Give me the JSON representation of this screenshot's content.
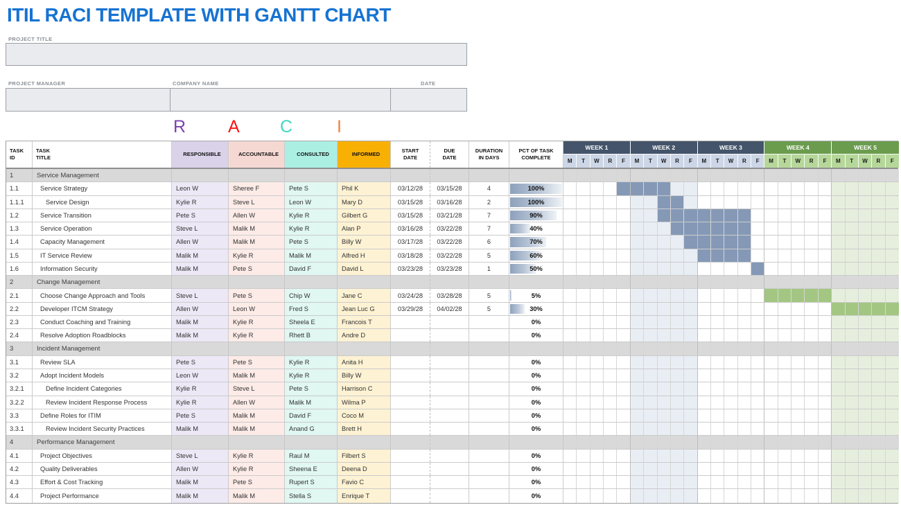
{
  "header": {
    "title": "ITIL RACI TEMPLATE WITH GANTT CHART",
    "title_color": "#1673d2"
  },
  "form": {
    "project_title_label": "PROJECT TITLE",
    "project_title_value": "",
    "project_manager_label": "PROJECT MANAGER",
    "project_manager_value": "",
    "company_name_label": "COMPANY NAME",
    "company_name_value": "",
    "date_label": "DATE",
    "date_value": ""
  },
  "raci_legend": [
    {
      "char": "R",
      "color": "#7d42ad"
    },
    {
      "char": "A",
      "color": "#fa1414"
    },
    {
      "char": "C",
      "color": "#43d6c5"
    },
    {
      "char": "I",
      "color": "#f08142"
    }
  ],
  "table": {
    "columns": [
      {
        "key": "id",
        "lines": [
          "TASK",
          "ID"
        ],
        "align": "left",
        "bg": "#ffffff"
      },
      {
        "key": "title",
        "lines": [
          "TASK",
          "TITLE"
        ],
        "align": "left",
        "bg": "#ffffff"
      },
      {
        "key": "resp",
        "lines": [
          "RESPONSIBLE"
        ],
        "align": "center",
        "bg": "#d9d2e9"
      },
      {
        "key": "acct",
        "lines": [
          "ACCOUNTABLE"
        ],
        "align": "center",
        "bg": "#f6d8d3"
      },
      {
        "key": "cons",
        "lines": [
          "CONSULTED"
        ],
        "align": "center",
        "bg": "#abefe3"
      },
      {
        "key": "inf",
        "lines": [
          "INFORMED"
        ],
        "align": "center",
        "bg": "#f9b005"
      },
      {
        "key": "start",
        "lines": [
          "START",
          "DATE"
        ],
        "align": "center",
        "bg": "#ffffff"
      },
      {
        "key": "due",
        "lines": [
          "DUE",
          "DATE"
        ],
        "align": "center",
        "bg": "#ffffff"
      },
      {
        "key": "dur",
        "lines": [
          "DURATION",
          "IN DAYS"
        ],
        "align": "center",
        "bg": "#ffffff"
      },
      {
        "key": "pct",
        "lines": [
          "PCT OF TASK",
          "COMPLETE"
        ],
        "align": "center",
        "bg": "#ffffff"
      }
    ],
    "gantt": {
      "weeks": [
        {
          "label": "WEEK 1",
          "theme": "blue"
        },
        {
          "label": "WEEK 2",
          "theme": "blue"
        },
        {
          "label": "WEEK 3",
          "theme": "blue"
        },
        {
          "label": "WEEK 4",
          "theme": "green"
        },
        {
          "label": "WEEK 5",
          "theme": "green"
        }
      ],
      "days": [
        "M",
        "T",
        "W",
        "R",
        "F"
      ],
      "band_blue_cols": [
        5,
        9
      ],
      "band_green_cols": [
        20,
        24
      ]
    },
    "colors": {
      "week_blue": "#44546a",
      "week_green": "#6b9c4e",
      "day_blue": "#ccd6e6",
      "day_green": "#b6d79a",
      "band_blue": "#e9eef5",
      "band_green": "#e6efdd",
      "bar_blue": "#8599b7",
      "bar_green": "#a3c782",
      "section_gray": "#d9d9d9"
    },
    "rows": [
      {
        "id": "1",
        "title": "Service Management",
        "level": 0,
        "section": true,
        "resp": "",
        "acct": "",
        "cons": "",
        "inf": "",
        "start": "",
        "due": "",
        "dur": "",
        "pct": "",
        "bar": null
      },
      {
        "id": "1.1",
        "title": "Service Strategy",
        "level": 1,
        "section": false,
        "resp": "Leon W",
        "acct": "Sheree F",
        "cons": "Pete S",
        "inf": "Phil K",
        "start": "03/12/28",
        "due": "03/15/28",
        "dur": "4",
        "pct": "100%",
        "bar": {
          "from": 4,
          "to": 7,
          "color": "blue"
        }
      },
      {
        "id": "1.1.1",
        "title": "Service Design",
        "level": 2,
        "section": false,
        "resp": "Kylie R",
        "acct": "Steve L",
        "cons": "Leon W",
        "inf": "Mary D",
        "start": "03/15/28",
        "due": "03/16/28",
        "dur": "2",
        "pct": "100%",
        "bar": {
          "from": 7,
          "to": 8,
          "color": "blue"
        }
      },
      {
        "id": "1.2",
        "title": "Service Transition",
        "level": 1,
        "section": false,
        "resp": "Pete S",
        "acct": "Allen W",
        "cons": "Kylie R",
        "inf": "Gilbert G",
        "start": "03/15/28",
        "due": "03/21/28",
        "dur": "7",
        "pct": "90%",
        "bar": {
          "from": 7,
          "to": 13,
          "color": "blue"
        }
      },
      {
        "id": "1.3",
        "title": "Service Operation",
        "level": 1,
        "section": false,
        "resp": "Steve L",
        "acct": "Malik M",
        "cons": "Kylie R",
        "inf": "Alan P",
        "start": "03/16/28",
        "due": "03/22/28",
        "dur": "7",
        "pct": "40%",
        "bar": {
          "from": 8,
          "to": 13,
          "color": "blue"
        }
      },
      {
        "id": "1.4",
        "title": "Capacity Management",
        "level": 1,
        "section": false,
        "resp": "Allen W",
        "acct": "Malik M",
        "cons": "Pete S",
        "inf": "Billy W",
        "start": "03/17/28",
        "due": "03/22/28",
        "dur": "6",
        "pct": "70%",
        "bar": {
          "from": 9,
          "to": 13,
          "color": "blue"
        }
      },
      {
        "id": "1.5",
        "title": "IT Service Review",
        "level": 1,
        "section": false,
        "resp": "Malik M",
        "acct": "Kylie R",
        "cons": "Malik M",
        "inf": "Alfred H",
        "start": "03/18/28",
        "due": "03/22/28",
        "dur": "5",
        "pct": "60%",
        "bar": {
          "from": 10,
          "to": 13,
          "color": "blue"
        }
      },
      {
        "id": "1.6",
        "title": "Information Security",
        "level": 1,
        "section": false,
        "resp": "Malik M",
        "acct": "Pete S",
        "cons": "David F",
        "inf": "David L",
        "start": "03/23/28",
        "due": "03/23/28",
        "dur": "1",
        "pct": "50%",
        "bar": {
          "from": 14,
          "to": 14,
          "color": "blue"
        }
      },
      {
        "id": "2",
        "title": "Change Management",
        "level": 0,
        "section": true,
        "resp": "",
        "acct": "",
        "cons": "",
        "inf": "",
        "start": "",
        "due": "",
        "dur": "",
        "pct": "",
        "bar": null
      },
      {
        "id": "2.1",
        "title": "Choose Change Approach and Tools",
        "level": 1,
        "section": false,
        "resp": "Steve L",
        "acct": "Pete S",
        "cons": "Chip W",
        "inf": "Jane C",
        "start": "03/24/28",
        "due": "03/28/28",
        "dur": "5",
        "pct": "5%",
        "bar": {
          "from": 15,
          "to": 19,
          "color": "green"
        }
      },
      {
        "id": "2.2",
        "title": "Developer ITCM Strategy",
        "level": 1,
        "section": false,
        "resp": "Allen W",
        "acct": "Leon W",
        "cons": "Fred S",
        "inf": "Jean Luc G",
        "start": "03/29/28",
        "due": "04/02/28",
        "dur": "5",
        "pct": "30%",
        "bar": {
          "from": 20,
          "to": 24,
          "color": "green"
        }
      },
      {
        "id": "2.3",
        "title": "Conduct Coaching and Training",
        "level": 1,
        "section": false,
        "resp": "Malik M",
        "acct": "Kylie R",
        "cons": "Sheela E",
        "inf": "Francois T",
        "start": "",
        "due": "",
        "dur": "",
        "pct": "0%",
        "bar": null
      },
      {
        "id": "2.4",
        "title": "Resolve Adoption Roadblocks",
        "level": 1,
        "section": false,
        "resp": "Malik M",
        "acct": "Kylie R",
        "cons": "Rhett B",
        "inf": "Andre D",
        "start": "",
        "due": "",
        "dur": "",
        "pct": "0%",
        "bar": null
      },
      {
        "id": "3",
        "title": "Incident Management",
        "level": 0,
        "section": true,
        "resp": "",
        "acct": "",
        "cons": "",
        "inf": "",
        "start": "",
        "due": "",
        "dur": "",
        "pct": "",
        "bar": null
      },
      {
        "id": "3.1",
        "title": "Review SLA",
        "level": 1,
        "section": false,
        "resp": "Pete S",
        "acct": "Pete S",
        "cons": "Kylie R",
        "inf": "Anita H",
        "start": "",
        "due": "",
        "dur": "",
        "pct": "0%",
        "bar": null
      },
      {
        "id": "3.2",
        "title": "Adopt Incident Models",
        "level": 1,
        "section": false,
        "resp": "Leon W",
        "acct": "Malik M",
        "cons": "Kylie R",
        "inf": "Billy W",
        "start": "",
        "due": "",
        "dur": "",
        "pct": "0%",
        "bar": null
      },
      {
        "id": "3.2.1",
        "title": "Define Incident Categories",
        "level": 2,
        "section": false,
        "resp": "Kylie R",
        "acct": "Steve L",
        "cons": "Pete S",
        "inf": "Harrison C",
        "start": "",
        "due": "",
        "dur": "",
        "pct": "0%",
        "bar": null
      },
      {
        "id": "3.2.2",
        "title": "Review Incident Response Process",
        "level": 2,
        "section": false,
        "resp": "Kylie R",
        "acct": "Allen W",
        "cons": "Malik M",
        "inf": "Wilma P",
        "start": "",
        "due": "",
        "dur": "",
        "pct": "0%",
        "bar": null
      },
      {
        "id": "3.3",
        "title": "Define Roles for ITIM",
        "level": 1,
        "section": false,
        "resp": "Pete S",
        "acct": "Malik M",
        "cons": "David F",
        "inf": "Coco M",
        "start": "",
        "due": "",
        "dur": "",
        "pct": "0%",
        "bar": null
      },
      {
        "id": "3.3.1",
        "title": "Review Incident Security Practices",
        "level": 2,
        "section": false,
        "resp": "Malik M",
        "acct": "Malik M",
        "cons": "Anand G",
        "inf": "Brett H",
        "start": "",
        "due": "",
        "dur": "",
        "pct": "0%",
        "bar": null
      },
      {
        "id": "4",
        "title": "Performance Management",
        "level": 0,
        "section": true,
        "resp": "",
        "acct": "",
        "cons": "",
        "inf": "",
        "start": "",
        "due": "",
        "dur": "",
        "pct": "",
        "bar": null
      },
      {
        "id": "4.1",
        "title": "Project Objectives",
        "level": 1,
        "section": false,
        "resp": "Steve L",
        "acct": "Kylie R",
        "cons": "Raul M",
        "inf": "Filbert S",
        "start": "",
        "due": "",
        "dur": "",
        "pct": "0%",
        "bar": null
      },
      {
        "id": "4.2",
        "title": "Quality Deliverables",
        "level": 1,
        "section": false,
        "resp": "Allen W",
        "acct": "Kylie R",
        "cons": "Sheena E",
        "inf": "Deena D",
        "start": "",
        "due": "",
        "dur": "",
        "pct": "0%",
        "bar": null
      },
      {
        "id": "4.3",
        "title": "Effort & Cost Tracking",
        "level": 1,
        "section": false,
        "resp": "Malik M",
        "acct": "Pete S",
        "cons": "Rupert S",
        "inf": "Favio C",
        "start": "",
        "due": "",
        "dur": "",
        "pct": "0%",
        "bar": null
      },
      {
        "id": "4.4",
        "title": "Project Performance",
        "level": 1,
        "section": false,
        "resp": "Malik M",
        "acct": "Malik M",
        "cons": "Stella S",
        "inf": "Enrique T",
        "start": "",
        "due": "",
        "dur": "",
        "pct": "0%",
        "bar": null
      }
    ]
  }
}
